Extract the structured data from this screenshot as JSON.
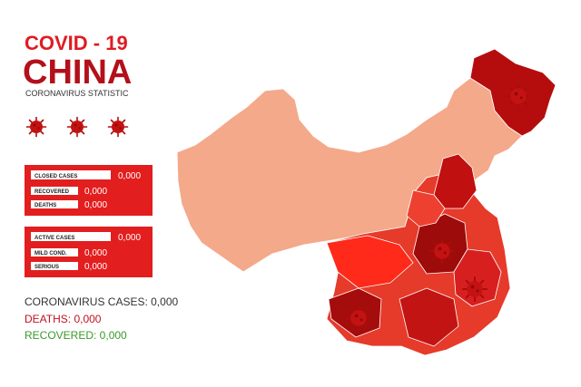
{
  "header": {
    "title": "COVID - 19",
    "country": "CHINA",
    "subtitle": "CORONAVIRUS  STATISTIC"
  },
  "closed_cases": {
    "rows": [
      {
        "label": "CLOSED CASES",
        "value": "0,000"
      },
      {
        "label": "RECOVERED",
        "value": "0,000"
      },
      {
        "label": "DEATHS",
        "value": "0,000"
      }
    ]
  },
  "active_cases": {
    "rows": [
      {
        "label": "ACTIVE CASES",
        "value": "0,000"
      },
      {
        "label": "MILD COND.",
        "value": "0,000"
      },
      {
        "label": "SERIOUS",
        "value": "0,000"
      }
    ]
  },
  "summary": [
    "CORONAVIRUS CASES: 0,000",
    "DEATHS: 0,000",
    "RECOVERED: 0,000"
  ]
}
